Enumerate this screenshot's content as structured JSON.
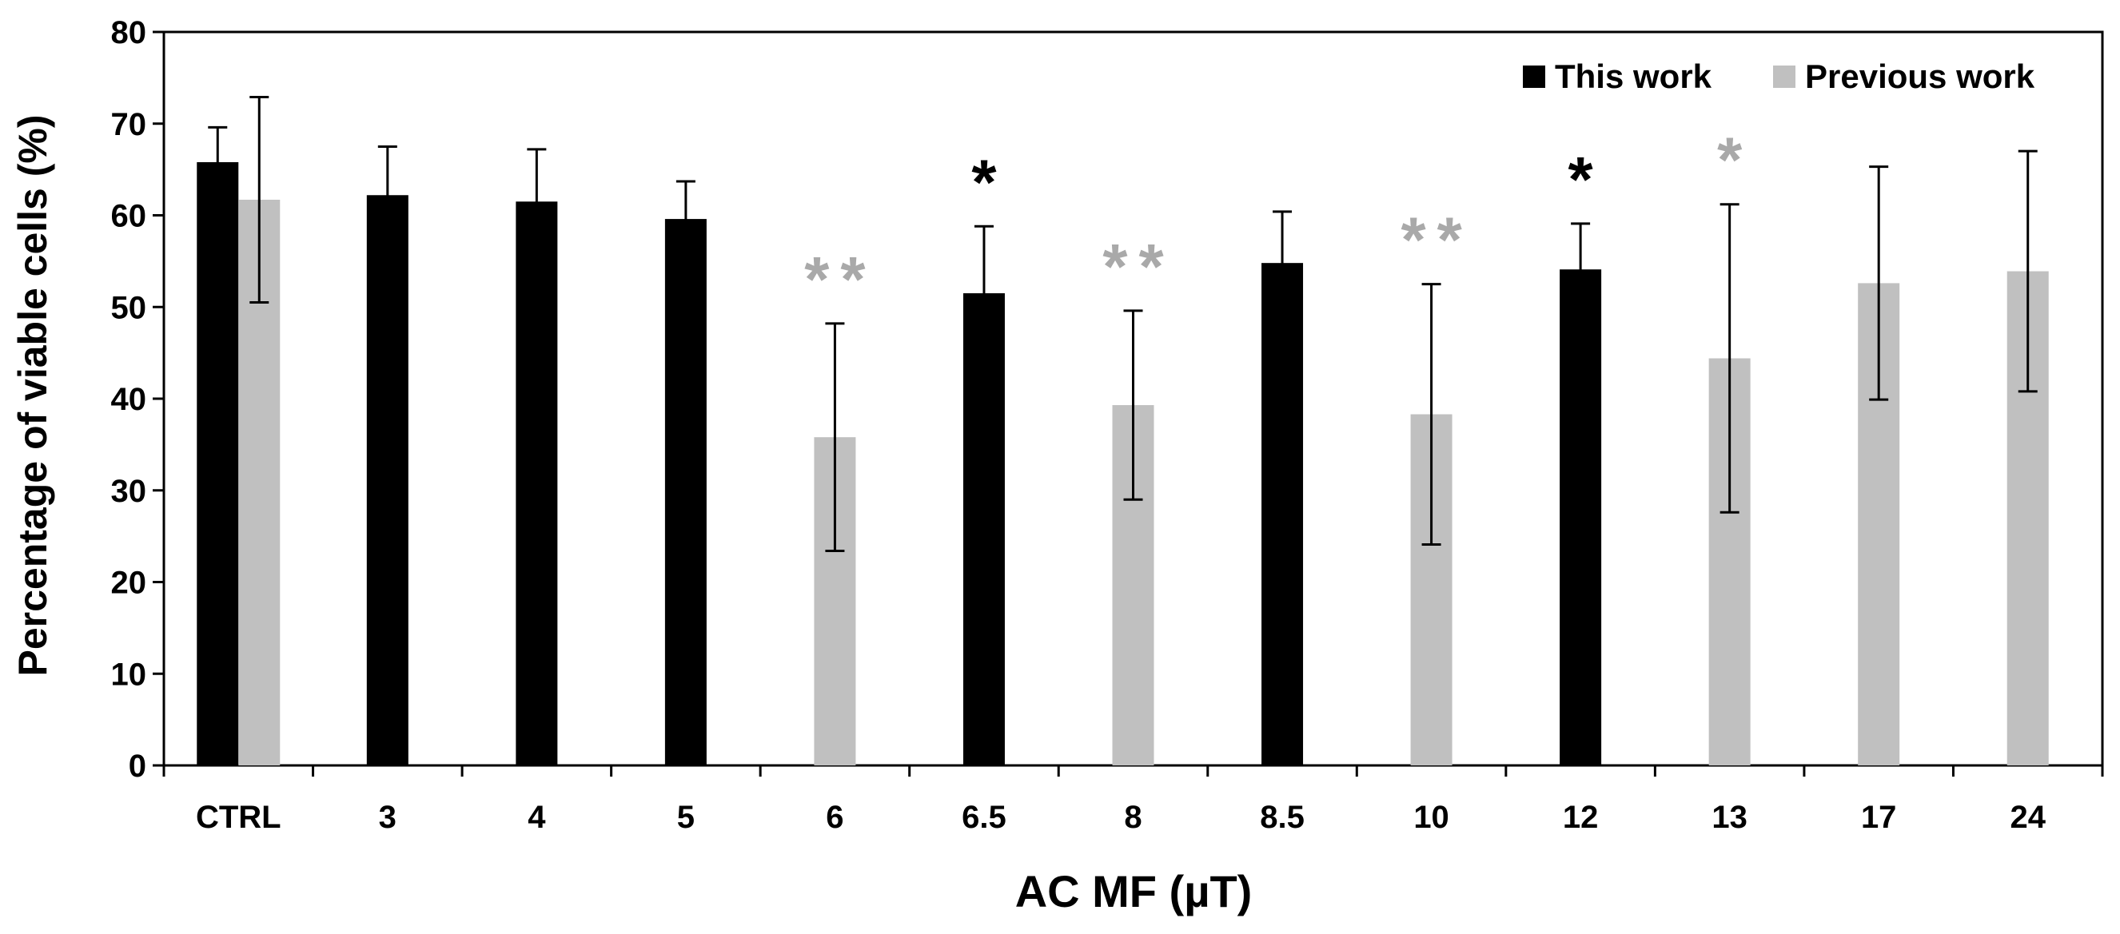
{
  "chart_data": {
    "type": "bar",
    "title": "",
    "xlabel": "AC MF (µT)",
    "ylabel": "Percentage of viable cells (%)",
    "ylim": [
      0,
      80
    ],
    "yticks": [
      0,
      10,
      20,
      30,
      40,
      50,
      60,
      70,
      80
    ],
    "grid": false,
    "legend_position": "top-right",
    "categories": [
      "CTRL",
      "3",
      "4",
      "5",
      "6",
      "6.5",
      "8",
      "8.5",
      "10",
      "12",
      "13",
      "17",
      "24"
    ],
    "series": [
      {
        "name": "This work",
        "color": "#000000",
        "values": [
          65.8,
          62.2,
          61.5,
          59.6,
          null,
          51.5,
          null,
          54.8,
          null,
          54.1,
          null,
          null,
          null
        ],
        "errors": [
          3.8,
          5.3,
          5.7,
          4.1,
          null,
          7.3,
          null,
          5.6,
          null,
          5.0,
          null,
          null,
          null
        ],
        "significance": [
          "",
          "",
          "",
          "",
          "",
          "*",
          "",
          "",
          "",
          "*",
          "",
          "",
          ""
        ]
      },
      {
        "name": "Previous work",
        "color": "#c0c0c0",
        "values": [
          61.7,
          null,
          null,
          null,
          35.8,
          null,
          39.3,
          null,
          38.3,
          null,
          44.4,
          52.6,
          53.9
        ],
        "errors": [
          11.2,
          null,
          null,
          null,
          12.4,
          null,
          10.3,
          null,
          14.2,
          null,
          16.8,
          12.7,
          13.1
        ],
        "significance": [
          "",
          "",
          "",
          "",
          "**",
          "",
          "**",
          "",
          "**",
          "",
          "*",
          "",
          ""
        ]
      }
    ]
  }
}
